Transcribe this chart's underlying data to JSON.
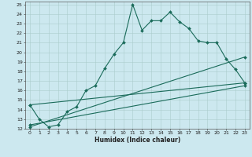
{
  "xlabel": "Humidex (Indice chaleur)",
  "xlim": [
    -0.5,
    23.5
  ],
  "ylim": [
    12,
    25.3
  ],
  "xticks": [
    0,
    1,
    2,
    3,
    4,
    5,
    6,
    7,
    8,
    9,
    10,
    11,
    12,
    13,
    14,
    15,
    16,
    17,
    18,
    19,
    20,
    21,
    22,
    23
  ],
  "yticks": [
    12,
    13,
    14,
    15,
    16,
    17,
    18,
    19,
    20,
    21,
    22,
    23,
    24,
    25
  ],
  "bg_color": "#cce8ef",
  "grid_color": "#aacccc",
  "line_color": "#1a6b5a",
  "line1_x": [
    0,
    1,
    2,
    3,
    4,
    5,
    6,
    7,
    8,
    9,
    10,
    11,
    12,
    13,
    14,
    15,
    16,
    17,
    18,
    19,
    20,
    21,
    22,
    23
  ],
  "line1_y": [
    14.5,
    13.0,
    12.2,
    12.4,
    13.8,
    14.3,
    16.0,
    16.5,
    18.3,
    19.8,
    21.0,
    25.0,
    22.3,
    23.3,
    23.3,
    24.2,
    23.2,
    22.5,
    21.2,
    21.0,
    21.0,
    19.3,
    18.2,
    16.8
  ],
  "line2_x": [
    0,
    23
  ],
  "line2_y": [
    14.5,
    16.8
  ],
  "line3_x": [
    0,
    23
  ],
  "line3_y": [
    12.4,
    16.5
  ],
  "line4_x": [
    0,
    23
  ],
  "line4_y": [
    12.2,
    19.5
  ]
}
